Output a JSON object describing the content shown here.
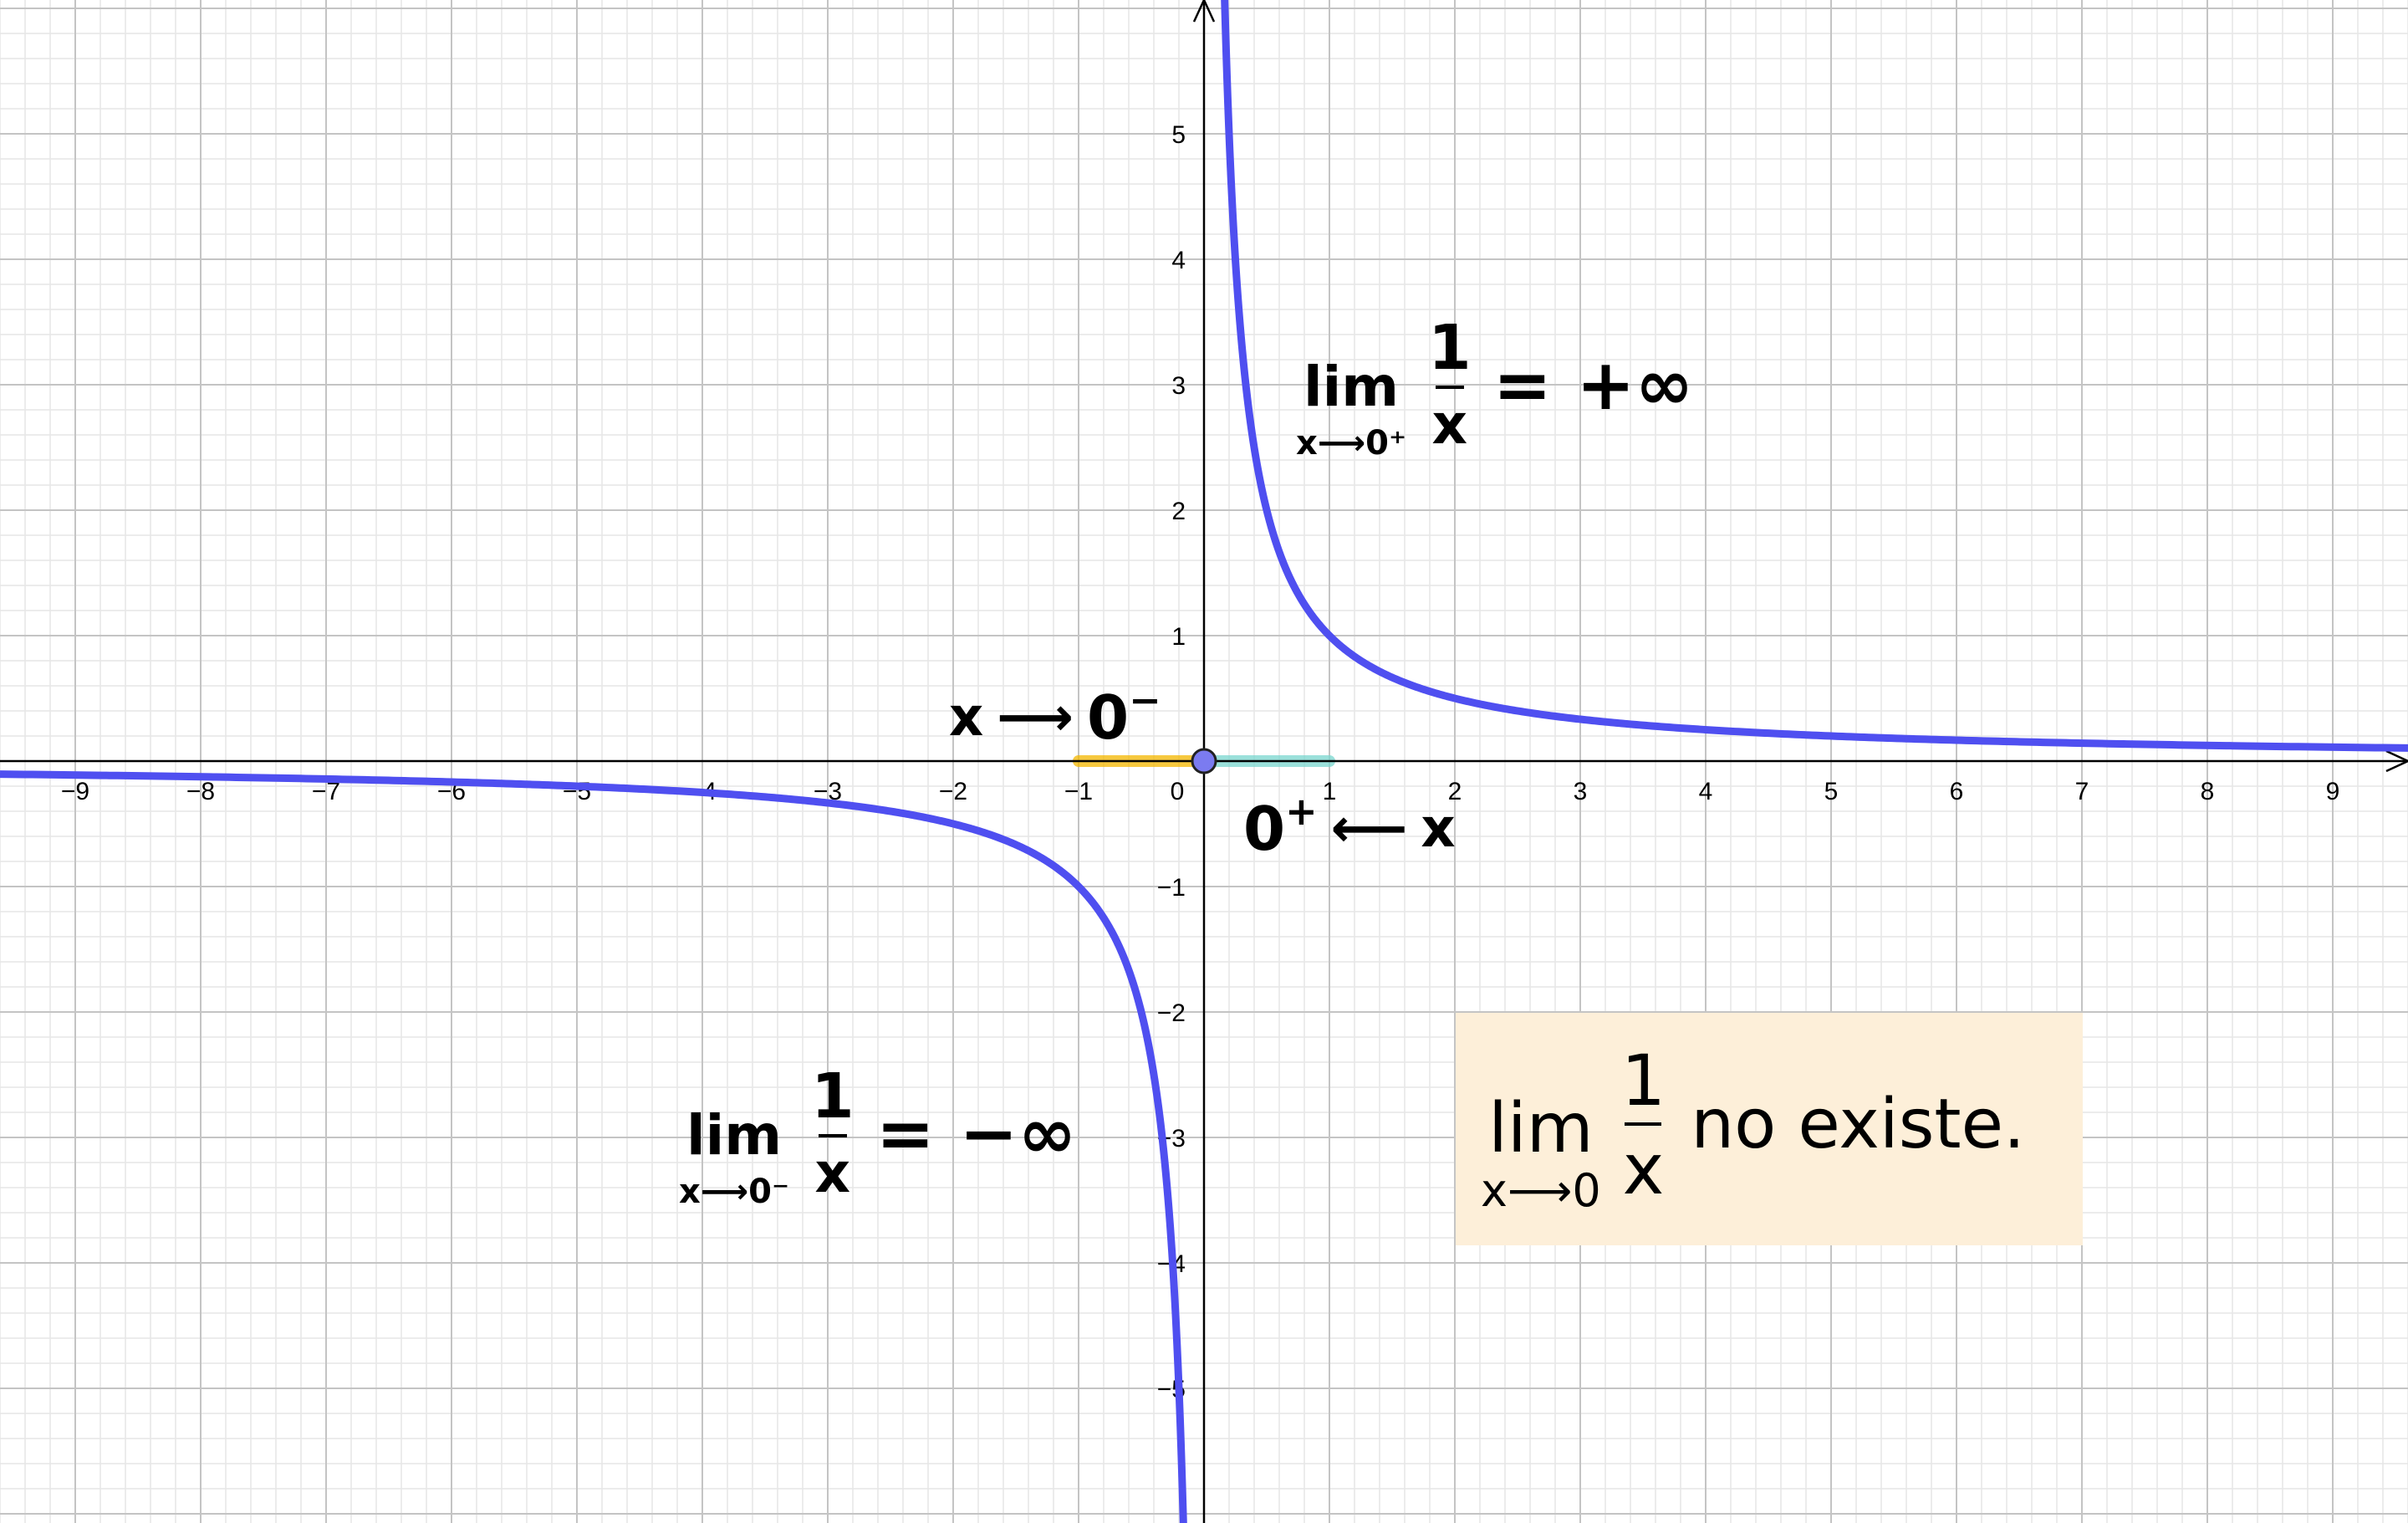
{
  "chart_data": {
    "type": "line",
    "function": "1/x",
    "xlim": [
      -9.6,
      9.6
    ],
    "ylim": [
      -6.07,
      6.07
    ],
    "x_ticks": [
      "−9",
      "−8",
      "−7",
      "−6",
      "−5",
      "−4",
      "−3",
      "−2",
      "−1",
      "0",
      "1",
      "2",
      "3",
      "4",
      "5",
      "6",
      "7",
      "8",
      "9"
    ],
    "y_ticks": [
      "−5",
      "−4",
      "−3",
      "−2",
      "−1",
      "1",
      "2",
      "3",
      "4",
      "5"
    ],
    "grid": true,
    "series": [
      {
        "values_fn": "1/x",
        "domain": [
          0.16,
          9.6
        ],
        "color": "#4f4ff0"
      },
      {
        "values_fn": "1/x",
        "domain": [
          -9.6,
          -0.16
        ],
        "color": "#4f4ff0"
      }
    ],
    "highlights": [
      {
        "from": -1,
        "to": 0,
        "color": "#f5b800"
      },
      {
        "from": 0,
        "to": 1,
        "color": "#7ad8d0"
      }
    ],
    "point": {
      "x": 0,
      "y": 0
    }
  },
  "annotations": {
    "left_approach": {
      "x": "x",
      "arrow": "⟶",
      "zero": "0",
      "sign": "−"
    },
    "right_approach": {
      "zero": "0",
      "sign": "+",
      "arrow": "⟵",
      "x": "x"
    },
    "right_limit": {
      "lim": "lim",
      "sub": "x⟶0⁺",
      "num": "1",
      "den": "x",
      "result": "= +∞"
    },
    "left_limit": {
      "lim": "lim",
      "sub": "x⟶0⁻",
      "num": "1",
      "den": "x",
      "result": "= −∞"
    },
    "conclusion": {
      "lim": "lim",
      "sub": "x⟶0",
      "num": "1",
      "den": "x",
      "text": "no existe."
    }
  },
  "colors": {
    "curve": "#4f4ff0",
    "grid_major": "#c4c4c4",
    "grid_minor": "#e6e6e6",
    "box": "#fdefd9"
  }
}
